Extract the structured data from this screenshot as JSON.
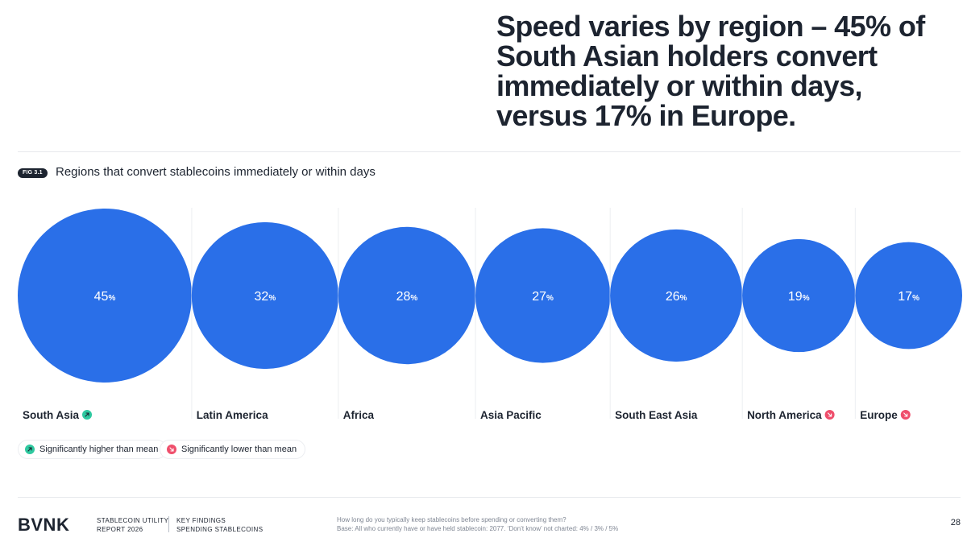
{
  "headline": {
    "lines": [
      "Speed varies by region – 45% of",
      "South Asian holders convert",
      "immediately or within days,",
      "versus 17% in Europe."
    ]
  },
  "figure": {
    "badge": "FIG 3.1",
    "title": "Regions that convert stablecoins immediately or within days"
  },
  "chart_data": {
    "type": "bubble",
    "title": "Regions that convert stablecoins immediately or within days",
    "unit": "%",
    "categories": [
      "South Asia",
      "Latin America",
      "Africa",
      "Asia Pacific",
      "South East Asia",
      "North America",
      "Europe"
    ],
    "values": [
      45,
      32,
      28,
      27,
      26,
      19,
      17
    ],
    "significance": [
      "higher",
      "none",
      "none",
      "none",
      "none",
      "lower",
      "lower"
    ],
    "bubble_color": "#2a6fe8"
  },
  "legend": {
    "higher": "Significantly higher than mean",
    "lower": "Significantly lower than mean"
  },
  "colors": {
    "higher": "#2fc9a0",
    "lower": "#ef4f6c",
    "text": "#1d2430"
  },
  "icons": {
    "higher": "arrow-up-right-icon",
    "lower": "arrow-down-right-icon"
  },
  "footer": {
    "logo": "BVNK",
    "report_line1": "STABLECOIN UTILITY",
    "report_line2": "REPORT 2026",
    "section_line1": "KEY FINDINGS",
    "section_line2": "SPENDING STABLECOINS",
    "question": "How long do you typically keep stablecoins before spending or converting them?",
    "base": "Base: All who currently have or have held stablecoin: 2077. ‘Don’t know’ not charted: 4% / 3% / 5%",
    "page": "28"
  }
}
